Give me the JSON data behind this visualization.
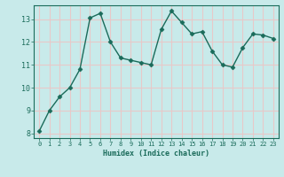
{
  "x": [
    0,
    1,
    2,
    3,
    4,
    5,
    6,
    7,
    8,
    9,
    10,
    11,
    12,
    13,
    14,
    15,
    16,
    17,
    18,
    19,
    20,
    21,
    22,
    23
  ],
  "y": [
    8.1,
    9.0,
    9.6,
    10.0,
    10.8,
    13.05,
    13.25,
    12.0,
    11.3,
    11.2,
    11.1,
    11.0,
    12.55,
    13.35,
    12.85,
    12.35,
    12.45,
    11.6,
    11.0,
    10.9,
    11.75,
    12.35,
    12.3,
    12.15
  ],
  "xlabel": "Humidex (Indice chaleur)",
  "ylim": [
    7.8,
    13.6
  ],
  "xlim": [
    -0.5,
    23.5
  ],
  "yticks": [
    8,
    9,
    10,
    11,
    12,
    13
  ],
  "xticks": [
    0,
    1,
    2,
    3,
    4,
    5,
    6,
    7,
    8,
    9,
    10,
    11,
    12,
    13,
    14,
    15,
    16,
    17,
    18,
    19,
    20,
    21,
    22,
    23
  ],
  "line_color": "#1a6b5a",
  "marker_color": "#1a6b5a",
  "bg_color": "#c8eaea",
  "grid_color": "#e8c8c8",
  "xlabel_color": "#1a6b5a",
  "tick_color": "#1a6b5a",
  "marker": "D",
  "marker_size": 2.5,
  "line_width": 1.0
}
